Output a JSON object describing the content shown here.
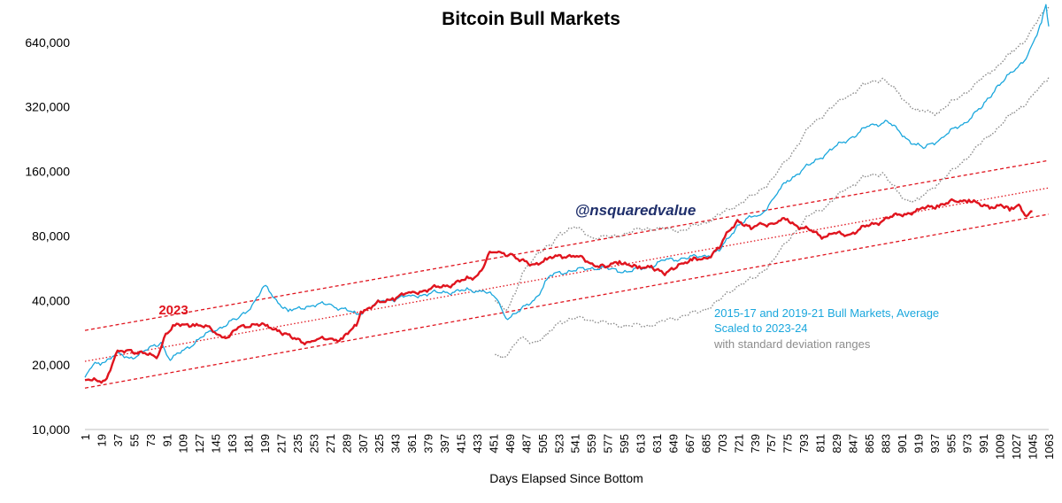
{
  "chart_data": {
    "type": "line",
    "title": "Bitcoin Bull Markets",
    "xlabel": "Days Elapsed Since Bottom",
    "ylabel": "",
    "y_scale": "log2",
    "ylim": [
      10000,
      900000
    ],
    "xlim": [
      1,
      1063
    ],
    "y_ticks": [
      10000,
      20000,
      40000,
      80000,
      160000,
      320000,
      640000
    ],
    "y_tick_labels": [
      "10,000",
      "20,000",
      "40,000",
      "80,000",
      "160,000",
      "320,000",
      "640,000"
    ],
    "x_tick_values": [
      1,
      19,
      37,
      55,
      73,
      91,
      109,
      127,
      145,
      163,
      181,
      199,
      217,
      235,
      253,
      271,
      289,
      307,
      325,
      343,
      361,
      379,
      397,
      415,
      433,
      451,
      469,
      487,
      505,
      523,
      541,
      559,
      577,
      595,
      613,
      631,
      649,
      667,
      685,
      703,
      721,
      739,
      757,
      775,
      793,
      811,
      829,
      847,
      865,
      883,
      901,
      919,
      937,
      955,
      973,
      991,
      1009,
      1027,
      1045,
      1063
    ],
    "x_tick_labels": [
      "1",
      "19",
      "37",
      "55",
      "73",
      "91",
      "109",
      "127",
      "145",
      "163",
      "181",
      "199",
      "217",
      "235",
      "253",
      "271",
      "289",
      "307",
      "325",
      "343",
      "361",
      "379",
      "397",
      "415",
      "433",
      "451",
      "469",
      "487",
      "505",
      "523",
      "541",
      "559",
      "577",
      "595",
      "613",
      "631",
      "649",
      "667",
      "685",
      "703",
      "721",
      "739",
      "757",
      "775",
      "793",
      "811",
      "829",
      "847",
      "865",
      "883",
      "901",
      "919",
      "937",
      "955",
      "973",
      "991",
      "1009",
      "1027",
      "1045",
      "1063"
    ],
    "grid": false,
    "annotations": {
      "watermark": "@nsquaredvalue",
      "series_2023_label": "2023",
      "avg_label_line1": "2015-17 and 2019-21 Bull Markets, Average",
      "avg_label_line2": "Scaled to 2023-24",
      "std_label": "with standard deviation ranges"
    },
    "colors": {
      "series_2023": "#e0141e",
      "average": "#1aa7dd",
      "std_range": "#8c8c8c",
      "channel": "#e0141e",
      "watermark": "#1f2f6b",
      "axis_text": "#000000"
    },
    "series": [
      {
        "name": "2023",
        "style": "solid",
        "width": 2.4,
        "x": [
          1,
          15,
          25,
          35,
          50,
          65,
          80,
          90,
          100,
          120,
          140,
          150,
          160,
          170,
          185,
          200,
          215,
          230,
          245,
          255,
          270,
          285,
          300,
          305,
          320,
          340,
          360,
          380,
          400,
          420,
          430,
          440,
          445,
          455,
          470,
          480,
          495,
          510,
          525,
          545,
          560,
          575,
          590,
          610,
          625,
          640,
          655,
          670,
          685,
          700,
          710,
          720,
          735,
          745,
          760,
          775,
          790,
          805,
          815,
          825,
          840,
          855,
          870,
          885,
          900,
          920,
          940,
          960,
          975,
          990,
          1000,
          1010,
          1020,
          1030,
          1035,
          1040,
          1045
        ],
        "y": [
          17000,
          16800,
          17300,
          22500,
          23500,
          22700,
          21500,
          28000,
          30500,
          31000,
          29500,
          27500,
          27000,
          30000,
          31000,
          30500,
          29000,
          26500,
          25500,
          26000,
          26500,
          26500,
          30500,
          35500,
          38000,
          41000,
          43500,
          45000,
          47000,
          50000,
          51000,
          57000,
          65000,
          67000,
          66000,
          61000,
          59000,
          62000,
          65000,
          64000,
          59500,
          57000,
          61000,
          56500,
          58000,
          52500,
          59000,
          61500,
          63000,
          70000,
          84000,
          95000,
          86000,
          92000,
          91000,
          96000,
          87000,
          83500,
          79000,
          82000,
          80500,
          86000,
          91000,
          97000,
          100000,
          106000,
          111000,
          116000,
          118000,
          110000,
          109000,
          112000,
          105000,
          112000,
          103000,
          100000,
          104000
        ]
      },
      {
        "name": "2015-17 and 2019-21 Bull Markets, Average",
        "style": "solid",
        "width": 1.3,
        "x": [
          1,
          10,
          20,
          35,
          50,
          70,
          85,
          95,
          110,
          130,
          150,
          170,
          185,
          200,
          210,
          225,
          245,
          270,
          300,
          330,
          360,
          390,
          420,
          440,
          455,
          465,
          480,
          500,
          510,
          520,
          540,
          560,
          580,
          600,
          620,
          640,
          660,
          680,
          700,
          710,
          720,
          735,
          745,
          760,
          775,
          800,
          820,
          845,
          865,
          885,
          900,
          915,
          925,
          945,
          970,
          990,
          1005,
          1025,
          1040,
          1050,
          1055,
          1060,
          1063
        ],
        "y": [
          17500,
          20000,
          20500,
          22500,
          21500,
          23500,
          25500,
          21000,
          23500,
          27000,
          30000,
          33000,
          38000,
          47000,
          41000,
          35500,
          37500,
          38500,
          34500,
          40000,
          42000,
          43500,
          44500,
          44500,
          40500,
          33000,
          35500,
          42000,
          50000,
          54000,
          55000,
          57000,
          56000,
          54500,
          57000,
          61500,
          63000,
          64000,
          68000,
          78000,
          90000,
          98000,
          100000,
          120000,
          145000,
          172000,
          198000,
          230000,
          260000,
          275000,
          240000,
          215000,
          205000,
          230000,
          270000,
          320000,
          395000,
          470000,
          560000,
          690000,
          790000,
          960000,
          760000
        ]
      },
      {
        "name": "Std dev upper",
        "style": "dotted",
        "width": 1.4,
        "x": [
          453,
          465,
          475,
          485,
          500,
          515,
          525,
          540,
          560,
          580,
          600,
          620,
          640,
          660,
          680,
          700,
          720,
          740,
          760,
          780,
          800,
          820,
          840,
          860,
          880,
          895,
          905,
          920,
          940,
          960,
          980,
          1000,
          1020,
          1040,
          1055,
          1063
        ],
        "y": [
          40000,
          36000,
          43000,
          55000,
          67000,
          72000,
          83000,
          88000,
          79000,
          79000,
          83000,
          87000,
          86000,
          85000,
          91000,
          100000,
          112000,
          125000,
          150000,
          195000,
          260000,
          310000,
          355000,
          405000,
          435000,
          380000,
          340000,
          305000,
          300000,
          345000,
          400000,
          470000,
          560000,
          680000,
          860000,
          940000
        ]
      },
      {
        "name": "Std dev lower",
        "style": "dotted",
        "width": 1.4,
        "x": [
          453,
          460,
          470,
          480,
          495,
          510,
          525,
          540,
          560,
          580,
          600,
          620,
          640,
          660,
          680,
          700,
          720,
          740,
          760,
          780,
          800,
          820,
          840,
          860,
          880,
          895,
          905,
          920,
          940,
          960,
          980,
          1000,
          1020,
          1040,
          1055,
          1063
        ],
        "y": [
          22500,
          21500,
          23500,
          26500,
          25500,
          27500,
          32000,
          33000,
          32500,
          31000,
          30500,
          30500,
          32000,
          34000,
          35500,
          40000,
          47000,
          51000,
          62000,
          81000,
          100000,
          112000,
          133000,
          150000,
          158000,
          130000,
          118000,
          118000,
          140000,
          165000,
          200000,
          240000,
          290000,
          340000,
          400000,
          440000
        ]
      }
    ],
    "channel_lines": [
      {
        "name": "upper-channel",
        "style": "dashed",
        "x": [
          1,
          1063
        ],
        "y": [
          29000,
          180000
        ]
      },
      {
        "name": "middle-channel",
        "style": "dotted",
        "x": [
          1,
          1063
        ],
        "y": [
          20800,
          134000
        ]
      },
      {
        "name": "lower-channel",
        "style": "dashed",
        "x": [
          1,
          1063
        ],
        "y": [
          15600,
          101000
        ]
      }
    ]
  }
}
